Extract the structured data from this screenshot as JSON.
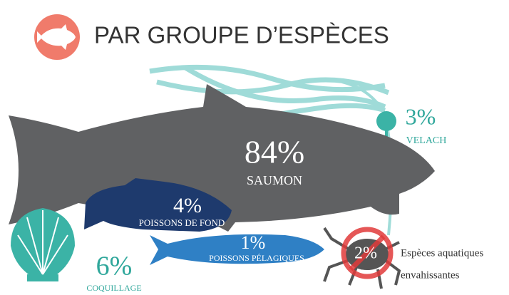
{
  "title": "PAR GROUPE D’ESPÈCES",
  "groups": [
    {
      "percent": "84%",
      "label": "SAUMON"
    },
    {
      "percent": "3%",
      "label": "VELACH"
    },
    {
      "percent": "4%",
      "label": "POISSONS DE FOND"
    },
    {
      "percent": "1%",
      "label": "POISSONS PÉLAGIQUES"
    },
    {
      "percent": "6%",
      "label": "COQUILLAGE"
    },
    {
      "percent": "2%",
      "label": "Espèces aquatiques",
      "label_line2": "envahissantes"
    }
  ]
}
